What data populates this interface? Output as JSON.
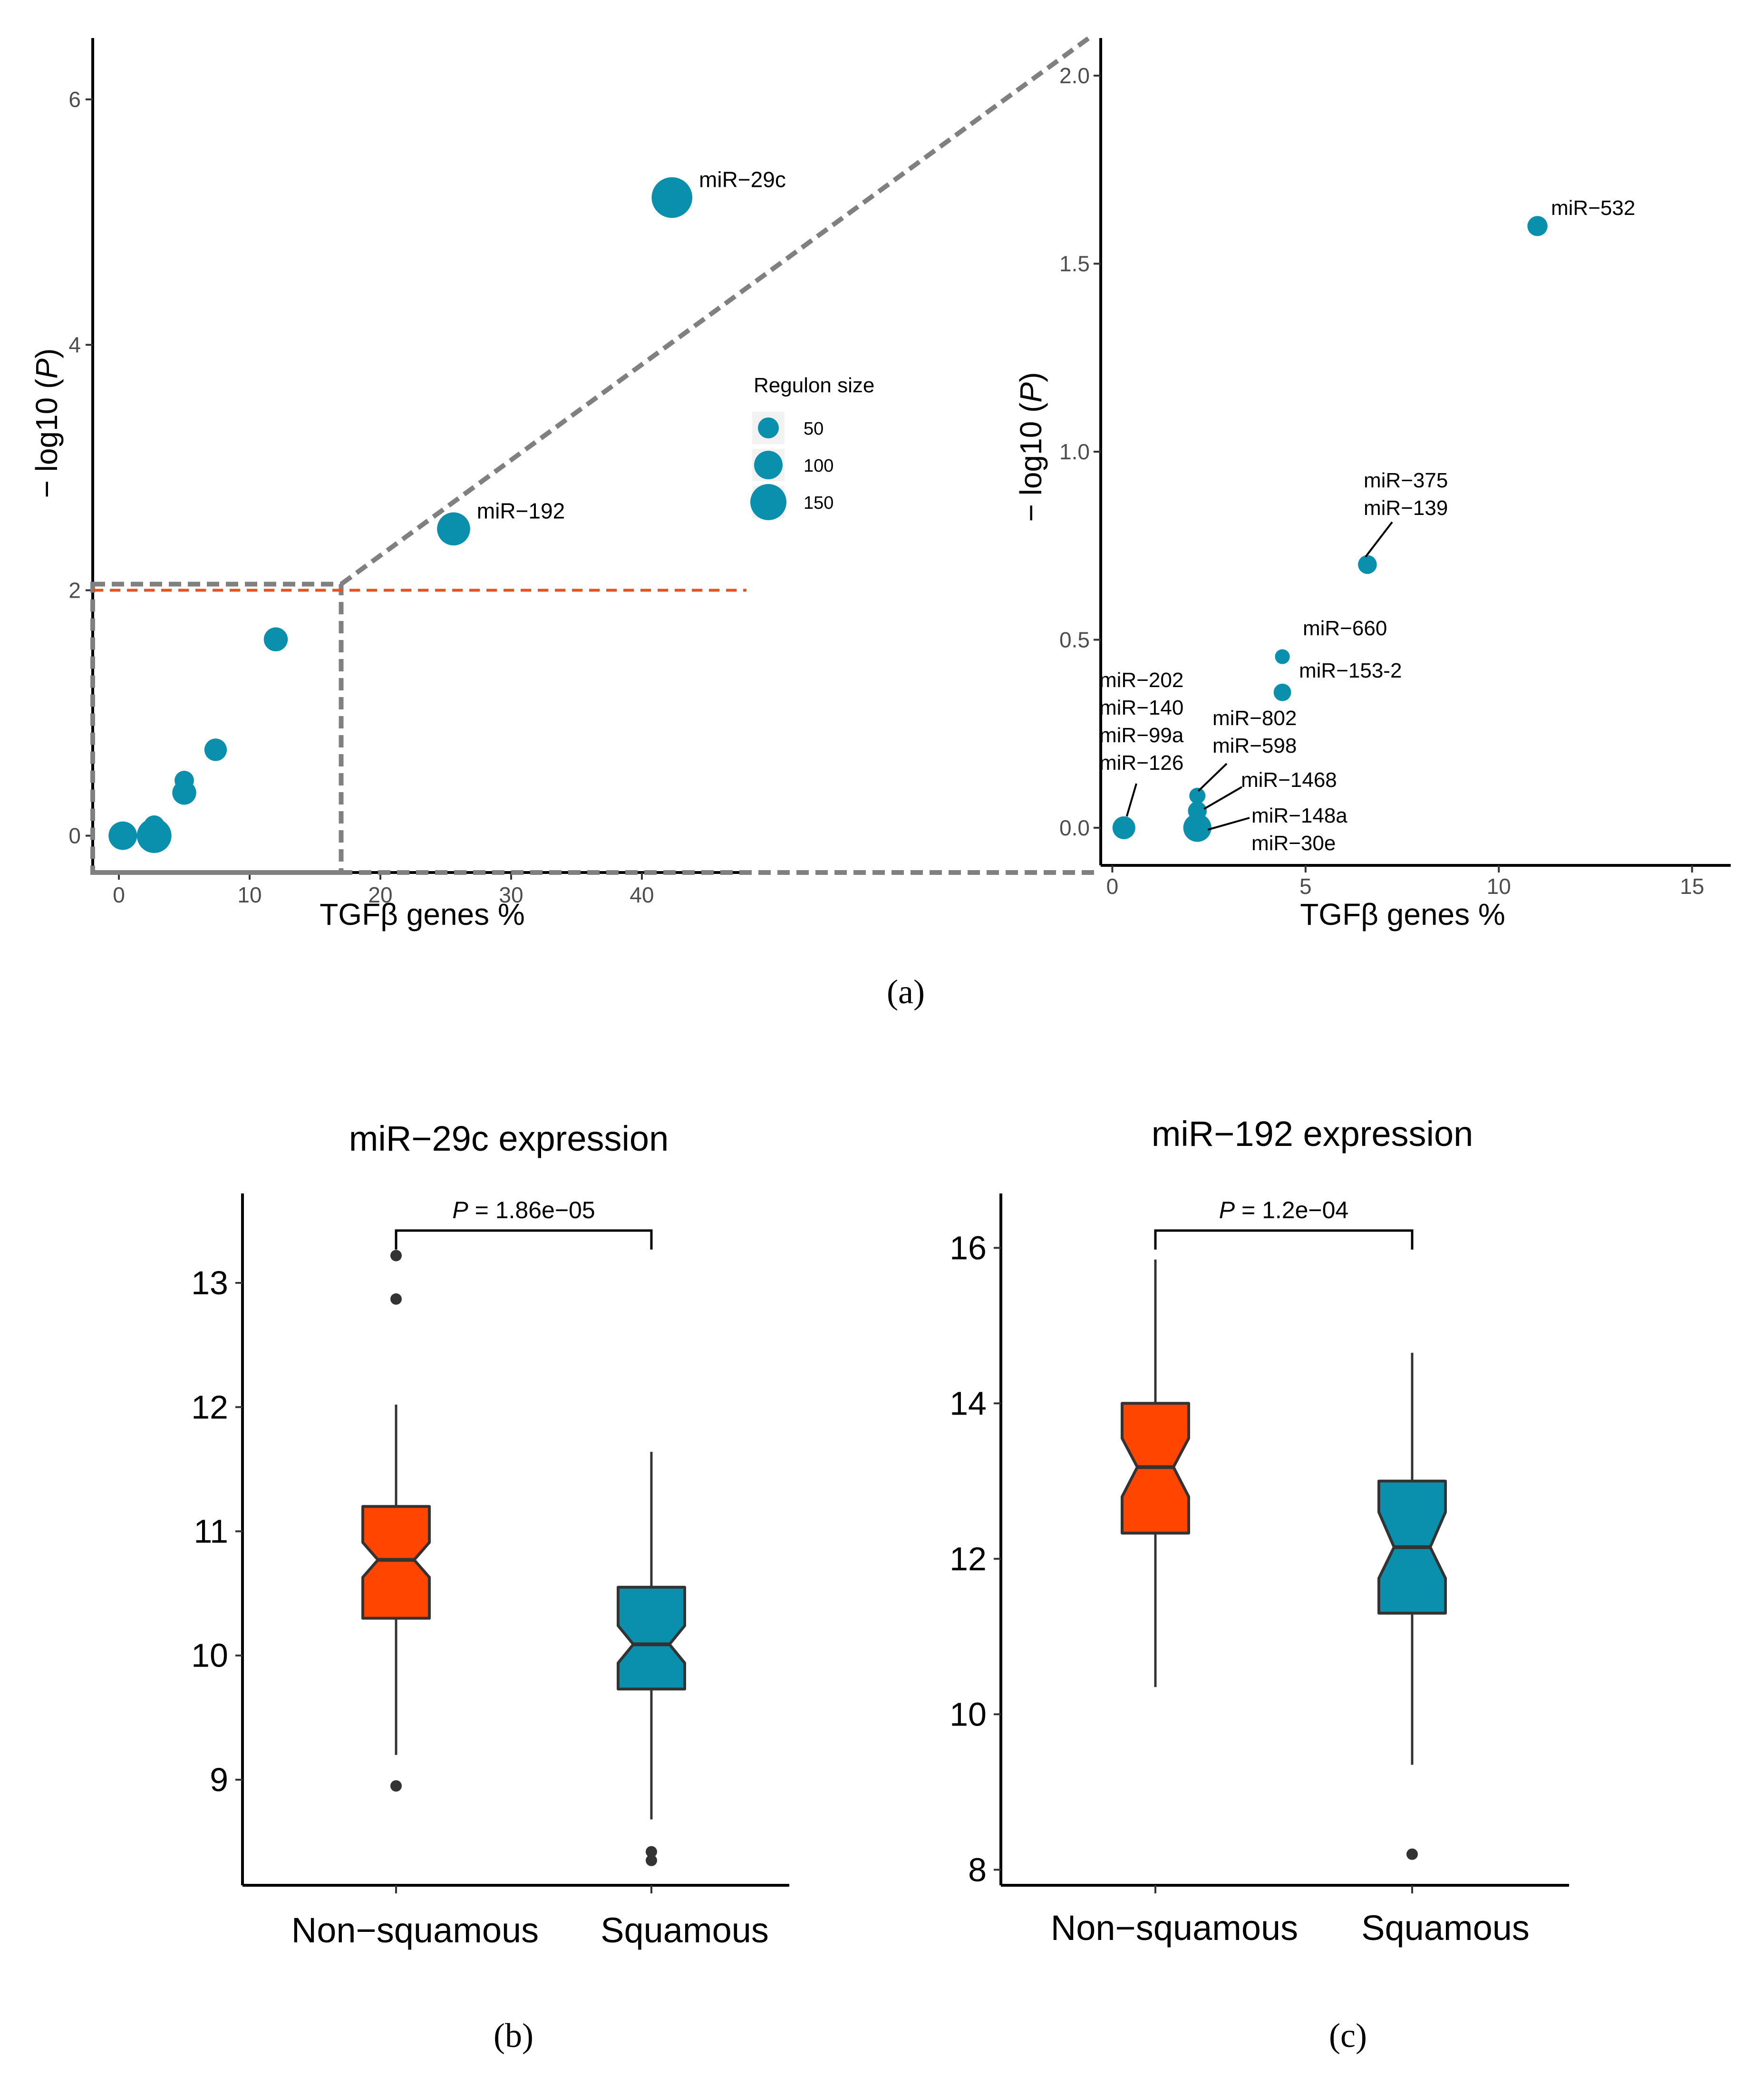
{
  "chart_data": [
    {
      "id": "main_scatter",
      "type": "scatter",
      "xlabel": "TGFβ genes %",
      "ylabel_prefix": "− log10 (",
      "ylabel_italic": "P",
      "ylabel_suffix": ")",
      "xlim": [
        -2,
        48
      ],
      "ylim": [
        -0.3,
        6.5
      ],
      "xticks": [
        0,
        10,
        20,
        30,
        40
      ],
      "yticks": [
        0,
        2,
        4,
        6
      ],
      "threshold_y": 2,
      "threshold_color": "#E8521E",
      "point_color": "#0A8FAD",
      "zoom_region": {
        "x": [
          -2,
          17
        ],
        "y": [
          -0.3,
          2.05
        ]
      },
      "points": [
        {
          "x": 0.3,
          "y": 0,
          "size": 100
        },
        {
          "x": 2.7,
          "y": 0,
          "size": 140
        },
        {
          "x": 2.7,
          "y": 0.08,
          "size": 50
        },
        {
          "x": 5.0,
          "y": 0.35,
          "size": 70
        },
        {
          "x": 5.0,
          "y": 0.45,
          "size": 40
        },
        {
          "x": 7.4,
          "y": 0.7,
          "size": 60
        },
        {
          "x": 12.0,
          "y": 1.6,
          "size": 70
        },
        {
          "x": 25.6,
          "y": 2.5,
          "size": 130,
          "label": "miR−192"
        },
        {
          "x": 42.3,
          "y": 5.2,
          "size": 180,
          "label": "miR−29c"
        }
      ],
      "legend": {
        "title": "Regulon size",
        "placement": "right",
        "sizes": [
          50,
          100,
          150
        ],
        "labels": [
          "50",
          "100",
          "150"
        ]
      }
    },
    {
      "id": "zoom_scatter",
      "type": "scatter",
      "xlabel": "TGFβ genes %",
      "ylabel_prefix": "− log10 (",
      "ylabel_italic": "P",
      "ylabel_suffix": ")",
      "xlim": [
        -0.3,
        16
      ],
      "ylim": [
        -0.1,
        2.1
      ],
      "xticks": [
        0,
        5,
        10,
        15
      ],
      "xtick_labels": [
        "0",
        "5",
        "10",
        "15"
      ],
      "yticks": [
        0,
        0.5,
        1.0,
        1.5,
        2.0
      ],
      "ytick_labels": [
        "0.0",
        "0.5",
        "1.0",
        "1.5",
        "2.0"
      ],
      "point_color": "#0A8FAD",
      "points": [
        {
          "x": 0.3,
          "y": 0,
          "size": 100
        },
        {
          "x": 2.2,
          "y": 0,
          "size": 140
        },
        {
          "x": 2.2,
          "y": 0.045,
          "size": 70
        },
        {
          "x": 2.2,
          "y": 0.085,
          "size": 50
        },
        {
          "x": 4.4,
          "y": 0.36,
          "size": 60
        },
        {
          "x": 4.4,
          "y": 0.455,
          "size": 40
        },
        {
          "x": 6.6,
          "y": 0.7,
          "size": 70
        },
        {
          "x": 11.0,
          "y": 1.6,
          "size": 80
        }
      ],
      "annotations": [
        {
          "lines": [
            "miR−532"
          ]
        },
        {
          "lines": [
            "miR−375",
            "miR−139"
          ]
        },
        {
          "lines": [
            "miR−660"
          ]
        },
        {
          "lines": [
            "miR−153-2"
          ]
        },
        {
          "lines": [
            "miR−802",
            "miR−598"
          ]
        },
        {
          "lines": [
            "miR−1468"
          ]
        },
        {
          "lines": [
            "miR−148a",
            "miR−30e"
          ]
        },
        {
          "lines": [
            "miR−202",
            "miR−140",
            "miR−99a",
            "miR−126"
          ]
        }
      ]
    },
    {
      "id": "box_29c",
      "type": "box",
      "title": "miR−29c expression",
      "categories": [
        "Non−squamous",
        "Squamous"
      ],
      "colors": [
        "#FF4500",
        "#0A8FAD"
      ],
      "ylim": [
        8.15,
        13.72
      ],
      "yticks": [
        9,
        10,
        11,
        12,
        13
      ],
      "ytick_labels": [
        "9",
        "10",
        "11",
        "12",
        "13"
      ],
      "boxes": [
        {
          "q1": 10.3,
          "median": 10.77,
          "q3": 11.2,
          "notch_low": 10.63,
          "notch_high": 10.91,
          "whisker_low": 9.2,
          "whisker_high": 12.02,
          "outliers": [
            13.22,
            12.87,
            8.95
          ]
        },
        {
          "q1": 9.73,
          "median": 10.09,
          "q3": 10.55,
          "notch_low": 9.94,
          "notch_high": 10.24,
          "whisker_low": 8.68,
          "whisker_high": 11.64,
          "outliers": [
            8.42,
            8.35
          ]
        }
      ],
      "pvalue_prefix": "P",
      "pvalue_text": " = 1.86e−05"
    },
    {
      "id": "box_192",
      "type": "box",
      "title": "miR−192 expression",
      "categories": [
        "Non−squamous",
        "Squamous"
      ],
      "colors": [
        "#FF4500",
        "#0A8FAD"
      ],
      "ylim": [
        7.8,
        16.7
      ],
      "yticks": [
        8,
        10,
        12,
        14,
        16
      ],
      "ytick_labels": [
        "8",
        "10",
        "12",
        "14",
        "16"
      ],
      "boxes": [
        {
          "q1": 12.33,
          "median": 13.18,
          "q3": 14.0,
          "notch_low": 12.8,
          "notch_high": 13.55,
          "whisker_low": 10.35,
          "whisker_high": 15.85,
          "outliers": []
        },
        {
          "q1": 11.3,
          "median": 12.15,
          "q3": 13.0,
          "notch_low": 11.75,
          "notch_high": 12.6,
          "whisker_low": 9.35,
          "whisker_high": 14.65,
          "outliers": [
            8.2
          ]
        }
      ],
      "pvalue_prefix": "P",
      "pvalue_text": " = 1.2e−04"
    }
  ],
  "captions": {
    "a": "(a)",
    "b": "(b)",
    "c": "(c)"
  }
}
